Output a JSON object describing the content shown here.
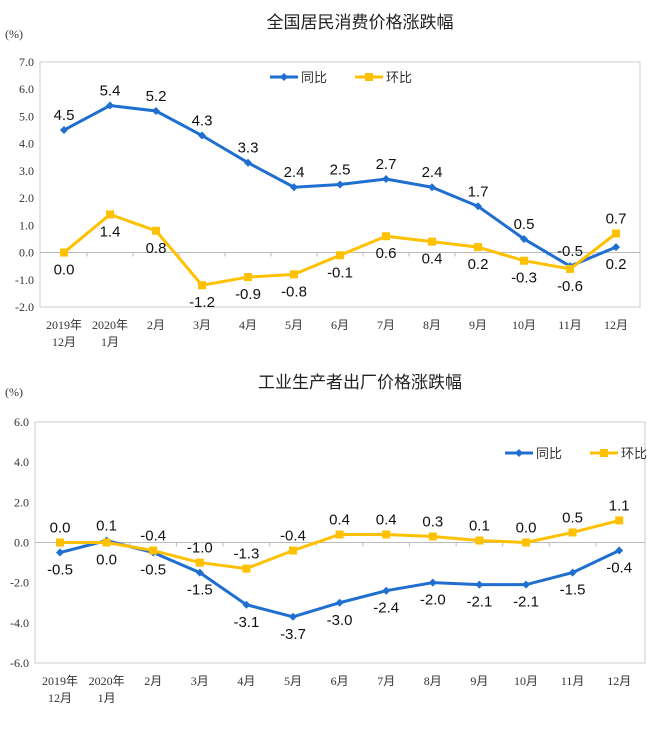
{
  "colors": {
    "yoy": "#1f6fd1",
    "mom": "#ffc000"
  },
  "chart_data": [
    {
      "type": "line",
      "title": "全国居民消费价格涨跌幅",
      "unit": "(%)",
      "ylim": [
        -2,
        7
      ],
      "yticks": [
        "7.0",
        "6.0",
        "5.0",
        "4.0",
        "3.0",
        "2.0",
        "1.0",
        "0.0",
        "-1.0",
        "-2.0"
      ],
      "categories": [
        "2019年\n12月",
        "2020年\n1月",
        "2月",
        "3月",
        "4月",
        "5月",
        "6月",
        "7月",
        "8月",
        "9月",
        "10月",
        "11月",
        "12月"
      ],
      "legend": "top-center",
      "series": [
        {
          "name": "同比",
          "values": [
            4.5,
            5.4,
            5.2,
            4.3,
            3.3,
            2.4,
            2.5,
            2.7,
            2.4,
            1.7,
            0.5,
            -0.5,
            0.2
          ]
        },
        {
          "name": "环比",
          "values": [
            0.0,
            1.4,
            0.8,
            -1.2,
            -0.9,
            -0.8,
            -0.1,
            0.6,
            0.4,
            0.2,
            -0.3,
            -0.6,
            0.7
          ]
        }
      ]
    },
    {
      "type": "line",
      "title": "工业生产者出厂价格涨跌幅",
      "unit": "(%)",
      "ylim": [
        -6,
        6
      ],
      "yticks": [
        "6.0",
        "4.0",
        "2.0",
        "0.0",
        "-2.0",
        "-4.0",
        "-6.0"
      ],
      "categories": [
        "2019年\n12月",
        "2020年\n1月",
        "2月",
        "3月",
        "4月",
        "5月",
        "6月",
        "7月",
        "8月",
        "9月",
        "10月",
        "11月",
        "12月"
      ],
      "legend": "top-right",
      "series": [
        {
          "name": "同比",
          "values": [
            -0.5,
            0.1,
            -0.5,
            -1.5,
            -3.1,
            -3.7,
            -3.0,
            -2.4,
            -2.0,
            -2.1,
            -2.1,
            -1.5,
            -0.4
          ]
        },
        {
          "name": "环比",
          "values": [
            0.0,
            0.0,
            -0.4,
            -1.0,
            -1.3,
            -0.4,
            0.4,
            0.4,
            0.3,
            0.1,
            0.0,
            0.5,
            1.1
          ]
        }
      ]
    }
  ]
}
